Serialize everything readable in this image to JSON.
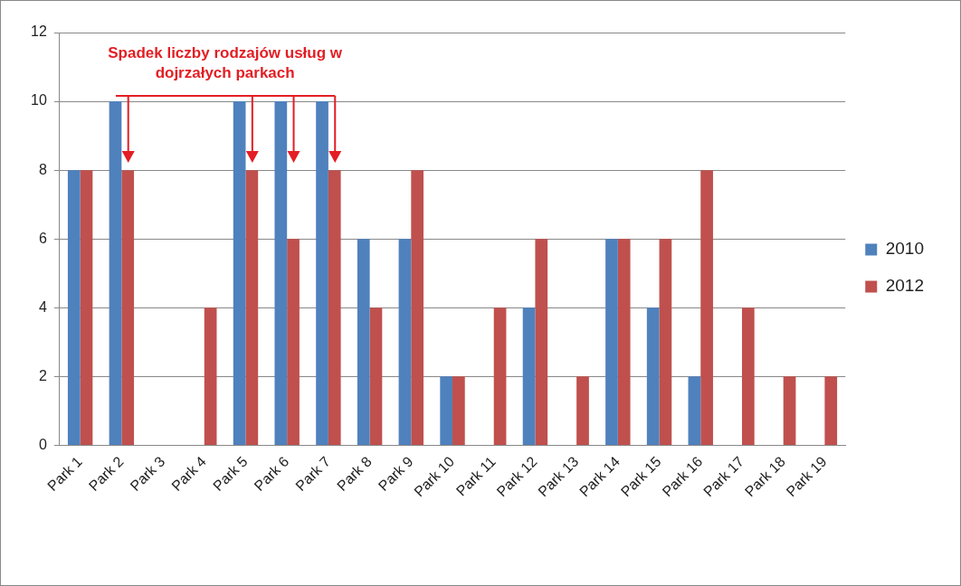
{
  "chart_data": {
    "type": "bar",
    "categories": [
      "Park 1",
      "Park 2",
      "Park 3",
      "Park 4",
      "Park 5",
      "Park 6",
      "Park 7",
      "Park 8",
      "Park 9",
      "Park 10",
      "Park 11",
      "Park 12",
      "Park 13",
      "Park 14",
      "Park 15",
      "Park 16",
      "Park 17",
      "Park 18",
      "Park 19"
    ],
    "series": [
      {
        "name": "2010",
        "color": "#4f81bd",
        "values": [
          8,
          10,
          0,
          0,
          10,
          10,
          10,
          6,
          6,
          2,
          0,
          4,
          0,
          6,
          4,
          2,
          0,
          0,
          0
        ]
      },
      {
        "name": "2012",
        "color": "#c0504d",
        "values": [
          8,
          8,
          0,
          4,
          8,
          6,
          8,
          4,
          8,
          2,
          4,
          6,
          2,
          6,
          6,
          8,
          4,
          2,
          2
        ]
      }
    ],
    "ylim": [
      0,
      12
    ],
    "yticks": [
      0,
      2,
      4,
      6,
      8,
      10,
      12
    ],
    "grid": "y",
    "legend": "right",
    "annotations": [
      "Spadek liczby rodzajów usług w dojrzałych parkach"
    ]
  }
}
